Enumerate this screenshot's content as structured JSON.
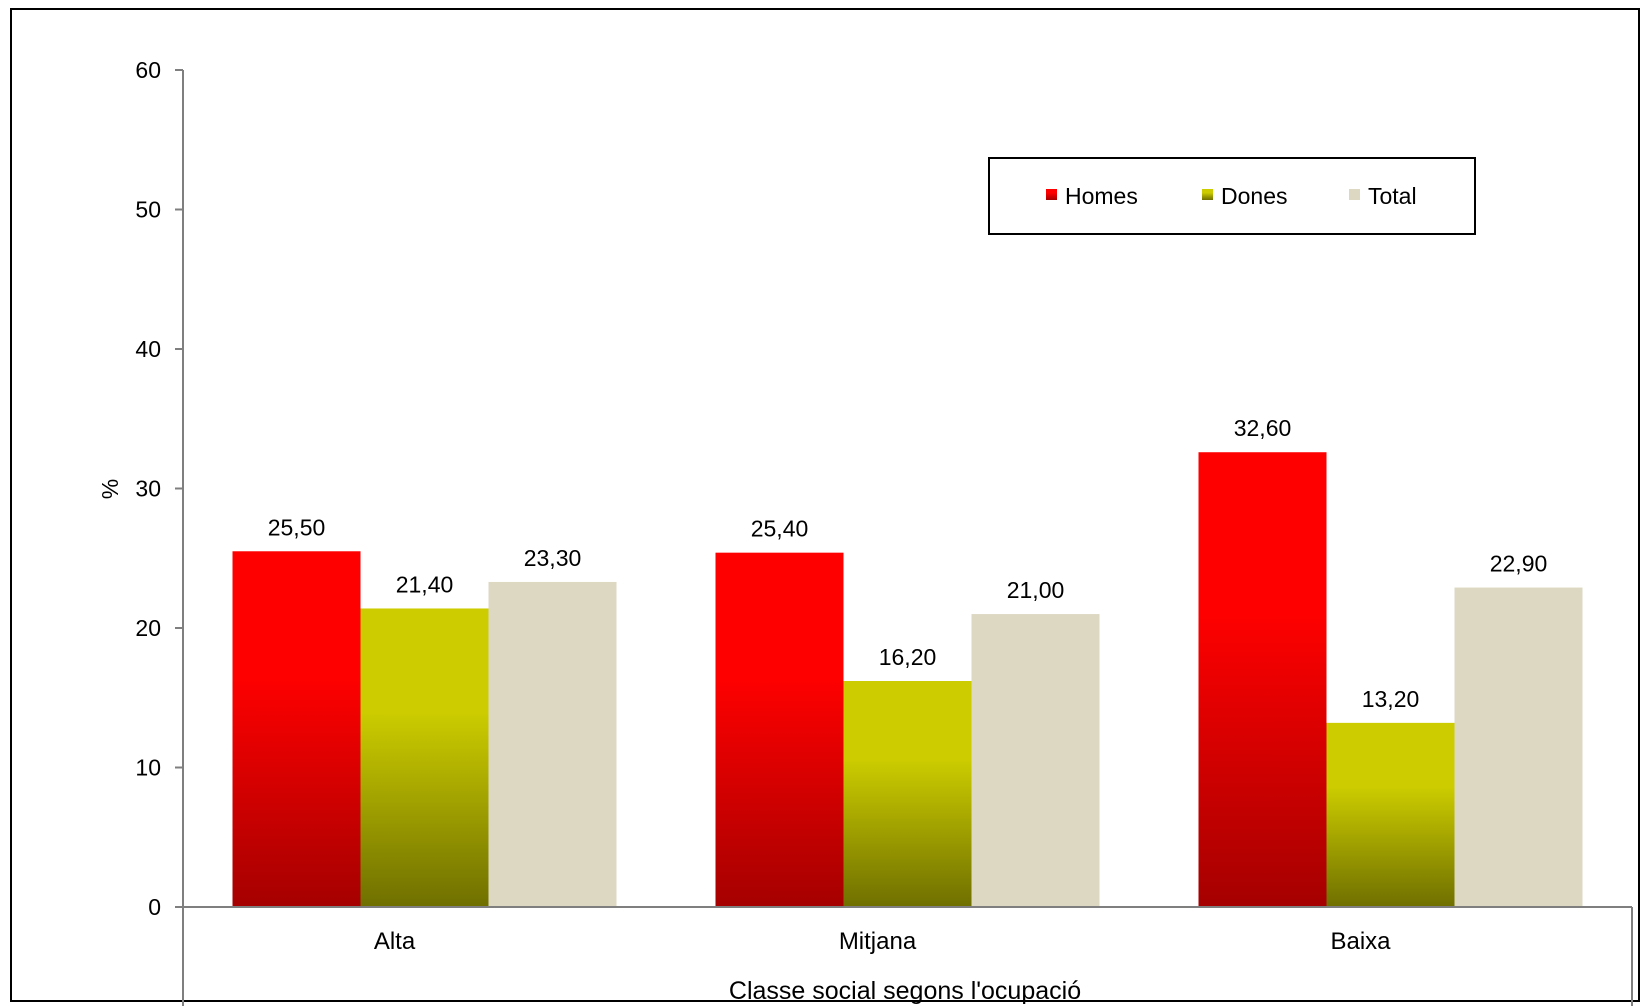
{
  "chart_data": {
    "type": "bar",
    "categories": [
      "Alta",
      "Mitjana",
      "Baixa"
    ],
    "series": [
      {
        "name": "Homes",
        "values": [
          25.5,
          25.4,
          32.6
        ],
        "labels": [
          "25,50",
          "25,40",
          "32,60"
        ],
        "color": "#ff0000",
        "color_dark": "#a50000"
      },
      {
        "name": "Dones",
        "values": [
          21.4,
          16.2,
          13.2
        ],
        "labels": [
          "21,40",
          "16,20",
          "13,20"
        ],
        "color": "#cccc00",
        "color_dark": "#6f6f00"
      },
      {
        "name": "Total",
        "values": [
          23.3,
          21.0,
          22.9
        ],
        "labels": [
          "23,30",
          "21,00",
          "22,90"
        ],
        "color": "#ddd8c2",
        "color_dark": "#ddd8c2"
      }
    ],
    "xlabel": "Classe social segons l'ocupació",
    "ylabel": "%",
    "ylim": [
      0,
      60
    ],
    "yticks": [
      0,
      10,
      20,
      30,
      40,
      50,
      60
    ],
    "grid": false,
    "legend": "top-right"
  }
}
